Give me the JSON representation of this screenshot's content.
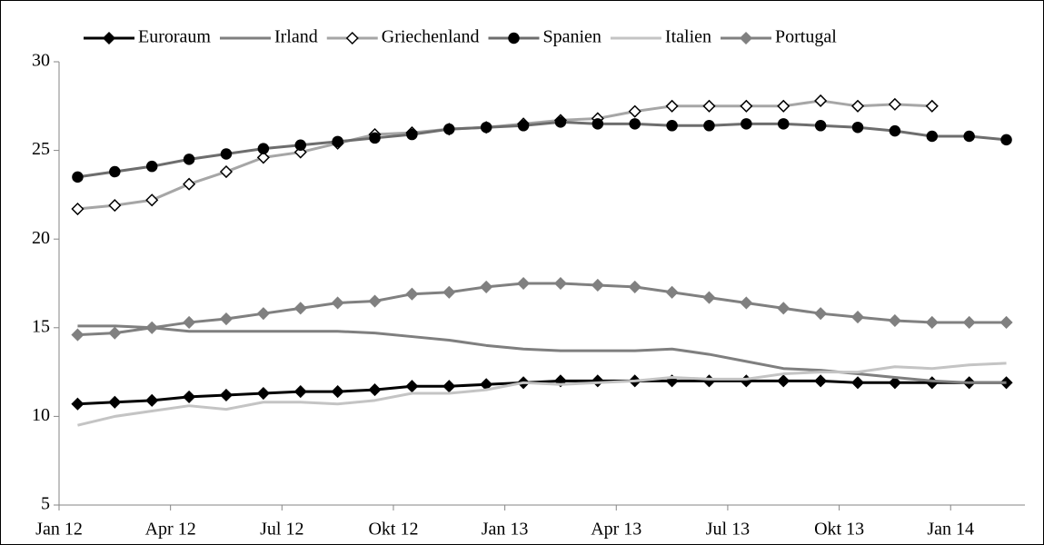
{
  "chart_data": {
    "type": "line",
    "categories": [
      "Jan 12",
      null,
      null,
      "Apr 12",
      null,
      null,
      "Jul 12",
      null,
      null,
      "Okt 12",
      null,
      null,
      "Jan 13",
      null,
      null,
      "Apr 13",
      null,
      null,
      "Jul 13",
      null,
      null,
      "Okt 13",
      null,
      null,
      "Jan 14",
      null
    ],
    "series": [
      {
        "name": "Euroraum",
        "color": "#000000",
        "marker": "diamond",
        "marker_fill": "#000000",
        "values": [
          10.7,
          10.8,
          10.9,
          11.1,
          11.2,
          11.3,
          11.4,
          11.4,
          11.5,
          11.7,
          11.7,
          11.8,
          11.9,
          12.0,
          12.0,
          12.0,
          12.0,
          12.0,
          12.0,
          12.0,
          12.0,
          11.9,
          11.9,
          11.9,
          11.9,
          11.9
        ]
      },
      {
        "name": "Irland",
        "color": "#7f7f7f",
        "marker": "none",
        "values": [
          15.1,
          15.1,
          15.0,
          14.8,
          14.8,
          14.8,
          14.8,
          14.8,
          14.7,
          14.5,
          14.3,
          14.0,
          13.8,
          13.7,
          13.7,
          13.7,
          13.8,
          13.5,
          13.1,
          12.7,
          12.6,
          12.4,
          12.2,
          12.0,
          11.9,
          11.9
        ]
      },
      {
        "name": "Griechenland",
        "color": "#a6a6a6",
        "marker": "diamond",
        "marker_fill": "#ffffff",
        "values": [
          21.7,
          21.9,
          22.2,
          23.1,
          23.8,
          24.6,
          24.9,
          25.4,
          25.9,
          26.0,
          26.2,
          26.3,
          26.5,
          26.7,
          26.8,
          27.2,
          27.5,
          27.5,
          27.5,
          27.5,
          27.8,
          27.5,
          27.6,
          27.5,
          null,
          null
        ]
      },
      {
        "name": "Spanien",
        "color": "#6d6d6d",
        "marker": "circle",
        "marker_fill": "#000000",
        "values": [
          23.5,
          23.8,
          24.1,
          24.5,
          24.8,
          25.1,
          25.3,
          25.5,
          25.7,
          25.9,
          26.2,
          26.3,
          26.4,
          26.6,
          26.5,
          26.5,
          26.4,
          26.4,
          26.5,
          26.5,
          26.4,
          26.3,
          26.1,
          25.8,
          25.8,
          25.6
        ]
      },
      {
        "name": "Italien",
        "color": "#c4c4c4",
        "marker": "none",
        "values": [
          9.5,
          10.0,
          10.3,
          10.6,
          10.4,
          10.8,
          10.8,
          10.7,
          10.9,
          11.3,
          11.3,
          11.5,
          11.9,
          11.8,
          11.9,
          12.0,
          12.2,
          12.1,
          12.1,
          12.4,
          12.5,
          12.5,
          12.8,
          12.7,
          12.9,
          13.0
        ]
      },
      {
        "name": "Portugal",
        "color": "#808080",
        "marker": "diamond",
        "marker_fill": "#808080",
        "values": [
          14.6,
          14.7,
          15.0,
          15.3,
          15.5,
          15.8,
          16.1,
          16.4,
          16.5,
          16.9,
          17.0,
          17.3,
          17.5,
          17.5,
          17.4,
          17.3,
          17.0,
          16.7,
          16.4,
          16.1,
          15.8,
          15.6,
          15.4,
          15.3,
          15.3,
          15.3
        ]
      }
    ],
    "ylim": [
      5,
      30
    ],
    "yticks": [
      5,
      10,
      15,
      20,
      25,
      30
    ],
    "grid": false,
    "legend": "top"
  }
}
